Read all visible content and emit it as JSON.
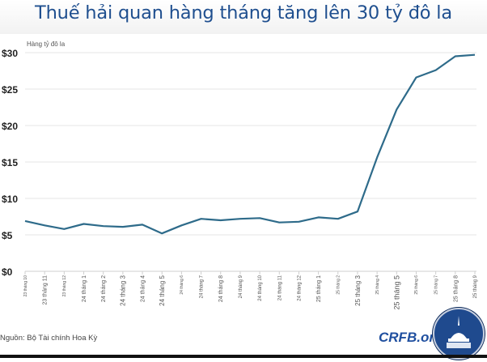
{
  "title": "Thuế hải quan hàng tháng tăng lên 30 tỷ đô la",
  "unit_label": "Hàng tỷ đô la",
  "source": "Nguồn: Bộ Tài chính Hoa Kỳ",
  "brand": "CRFB.org",
  "colors": {
    "line": "#2e6b8a",
    "title": "#1f4f8f",
    "grid": "#e6e6e6",
    "brand": "#1f4f9f"
  },
  "chart_data": {
    "type": "line",
    "title": "Thuế hải quan hàng tháng tăng lên 30 tỷ đô la",
    "xlabel": "",
    "ylabel": "Hàng tỷ đô la",
    "ylim": [
      0,
      30
    ],
    "yticks": [
      "$0",
      "$5",
      "$10",
      "$15",
      "$20",
      "$25",
      "$30"
    ],
    "grid": true,
    "legend": "none",
    "categories": [
      "23 tháng 10",
      "23 tháng 11",
      "23 tháng 12",
      "24 tháng 1",
      "24 tháng 2",
      "24 tháng 3",
      "24 tháng 4",
      "24 tháng 5",
      "24 tháng 6",
      "24 tháng 7",
      "24 tháng 8",
      "24 tháng 9",
      "24 tháng 10",
      "24 tháng 11",
      "24 tháng 12",
      "25 tháng 1",
      "25 tháng 2",
      "25 tháng 3",
      "25 tháng 4",
      "25 tháng 5",
      "25 tháng 6",
      "25 tháng 7",
      "25 tháng 8",
      "25 tháng 9"
    ],
    "label_sizes": [
      5,
      7,
      5,
      7,
      7,
      8,
      7,
      8,
      5,
      6,
      7,
      6,
      6,
      6,
      6,
      7,
      5,
      8,
      5,
      9,
      5,
      5,
      7,
      6
    ],
    "series": [
      {
        "name": "Thuế hải quan",
        "values": [
          6.9,
          6.3,
          5.8,
          6.5,
          6.2,
          6.1,
          6.4,
          5.2,
          6.3,
          7.2,
          7.0,
          7.2,
          7.3,
          6.7,
          6.8,
          7.4,
          7.2,
          8.2,
          15.6,
          22.2,
          26.6,
          27.6,
          29.5,
          29.7
        ]
      }
    ]
  }
}
